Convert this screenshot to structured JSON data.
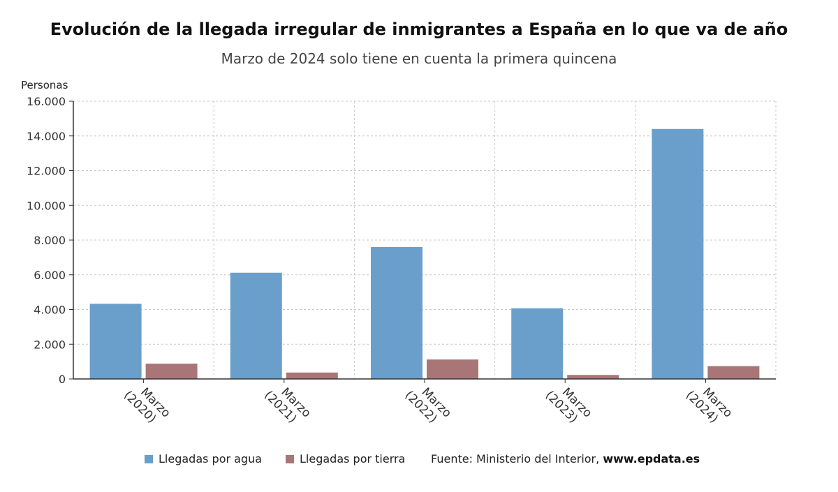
{
  "title": "Evolución de la llegada irregular de inmigrantes a España en lo que va de año",
  "subtitle": "Marzo de 2024 solo tiene en cuenta la primera quincena",
  "source": {
    "prefix": "Fuente: Ministerio del Interior,",
    "site": "www.epdata.es"
  },
  "colors": {
    "water": "#6a9fcb",
    "land": "#a87676",
    "grid": "#c8c8c8",
    "axis": "#333333"
  },
  "chart_data": {
    "type": "bar",
    "ylabel": "Personas",
    "ylim": [
      0,
      16000
    ],
    "yticks": [
      0,
      2000,
      4000,
      6000,
      8000,
      10000,
      12000,
      14000,
      16000
    ],
    "ytick_labels": [
      "0",
      "2.000",
      "4.000",
      "6.000",
      "8.000",
      "10.000",
      "12.000",
      "14.000",
      "16.000"
    ],
    "categories": [
      [
        "Marzo",
        "(2020)"
      ],
      [
        "Marzo",
        "(2021)"
      ],
      [
        "Marzo",
        "(2022)"
      ],
      [
        "Marzo",
        "(2023)"
      ],
      [
        "Marzo",
        "(2024)"
      ]
    ],
    "series": [
      {
        "name": "Llegadas por agua",
        "values": [
          4330,
          6120,
          7600,
          4070,
          14400
        ]
      },
      {
        "name": "Llegadas por tierra",
        "values": [
          880,
          370,
          1120,
          230,
          740
        ]
      }
    ],
    "grid": true,
    "legend_position": "bottom"
  }
}
